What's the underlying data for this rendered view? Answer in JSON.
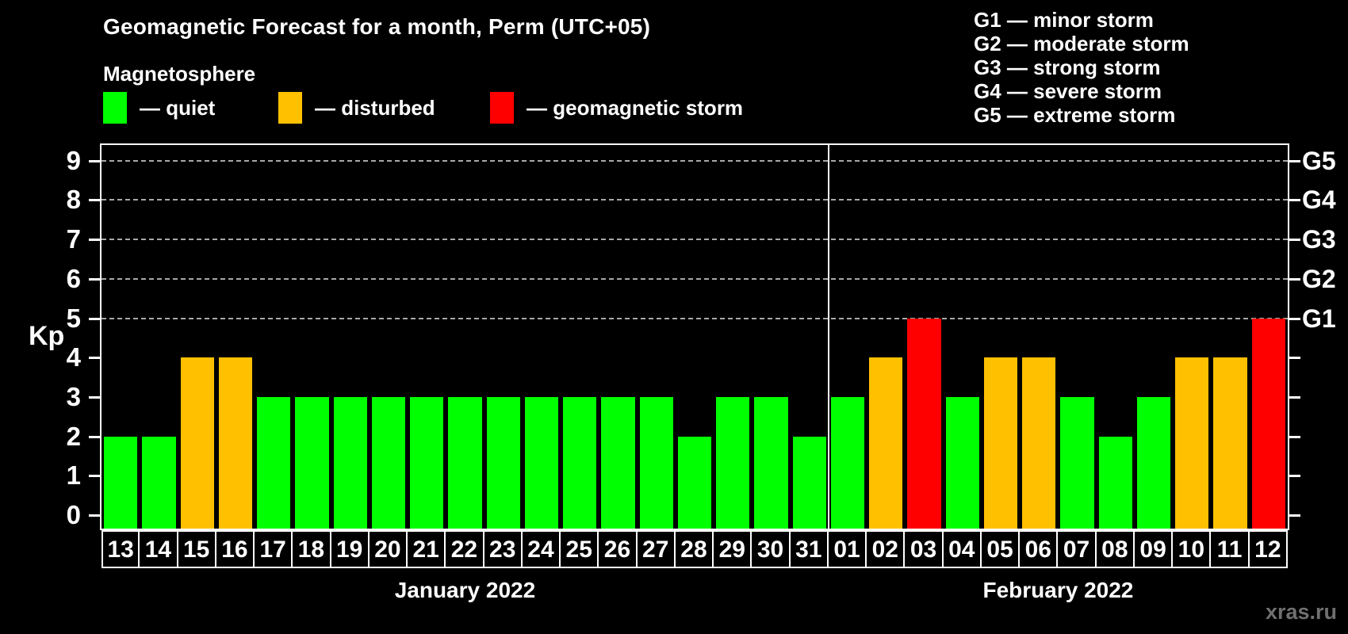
{
  "title": "Geomagnetic Forecast for a month, Perm (UTC+05)",
  "subtitle": "Magnetosphere",
  "axis": {
    "y_label": "Kp"
  },
  "status_legend": [
    {
      "status": "quiet",
      "label": "— quiet",
      "color": "#00ff00"
    },
    {
      "status": "disturbed",
      "label": "— disturbed",
      "color": "#ffc000"
    },
    {
      "status": "storm",
      "label": "— geomagnetic storm",
      "color": "#ff0000"
    }
  ],
  "g_scale_legend": [
    "G1 — minor storm",
    "G2 — moderate storm",
    "G3 — strong storm",
    "G4 — severe storm",
    "G5 — extreme storm"
  ],
  "watermark": "xras.ru",
  "chart_data": {
    "type": "bar",
    "ylabel": "Kp",
    "ylim": [
      0,
      9
    ],
    "yticks": [
      0,
      1,
      2,
      3,
      4,
      5,
      6,
      7,
      8,
      9
    ],
    "gridlines_at": [
      5,
      6,
      7,
      8,
      9
    ],
    "grid": "dashed",
    "right_axis": [
      {
        "kp": 5,
        "label": "G1"
      },
      {
        "kp": 6,
        "label": "G2"
      },
      {
        "kp": 7,
        "label": "G3"
      },
      {
        "kp": 8,
        "label": "G4"
      },
      {
        "kp": 9,
        "label": "G5"
      }
    ],
    "months": [
      {
        "label": "January 2022",
        "days": [
          {
            "date": "13",
            "kp": 2,
            "status": "quiet"
          },
          {
            "date": "14",
            "kp": 2,
            "status": "quiet"
          },
          {
            "date": "15",
            "kp": 4,
            "status": "disturbed"
          },
          {
            "date": "16",
            "kp": 4,
            "status": "disturbed"
          },
          {
            "date": "17",
            "kp": 3,
            "status": "quiet"
          },
          {
            "date": "18",
            "kp": 3,
            "status": "quiet"
          },
          {
            "date": "19",
            "kp": 3,
            "status": "quiet"
          },
          {
            "date": "20",
            "kp": 3,
            "status": "quiet"
          },
          {
            "date": "21",
            "kp": 3,
            "status": "quiet"
          },
          {
            "date": "22",
            "kp": 3,
            "status": "quiet"
          },
          {
            "date": "23",
            "kp": 3,
            "status": "quiet"
          },
          {
            "date": "24",
            "kp": 3,
            "status": "quiet"
          },
          {
            "date": "25",
            "kp": 3,
            "status": "quiet"
          },
          {
            "date": "26",
            "kp": 3,
            "status": "quiet"
          },
          {
            "date": "27",
            "kp": 3,
            "status": "quiet"
          },
          {
            "date": "28",
            "kp": 2,
            "status": "quiet"
          },
          {
            "date": "29",
            "kp": 3,
            "status": "quiet"
          },
          {
            "date": "30",
            "kp": 3,
            "status": "quiet"
          },
          {
            "date": "31",
            "kp": 2,
            "status": "quiet"
          }
        ]
      },
      {
        "label": "February 2022",
        "days": [
          {
            "date": "01",
            "kp": 3,
            "status": "quiet"
          },
          {
            "date": "02",
            "kp": 4,
            "status": "disturbed"
          },
          {
            "date": "03",
            "kp": 5,
            "status": "storm"
          },
          {
            "date": "04",
            "kp": 3,
            "status": "quiet"
          },
          {
            "date": "05",
            "kp": 4,
            "status": "disturbed"
          },
          {
            "date": "06",
            "kp": 4,
            "status": "disturbed"
          },
          {
            "date": "07",
            "kp": 3,
            "status": "quiet"
          },
          {
            "date": "08",
            "kp": 2,
            "status": "quiet"
          },
          {
            "date": "09",
            "kp": 3,
            "status": "quiet"
          },
          {
            "date": "10",
            "kp": 4,
            "status": "disturbed"
          },
          {
            "date": "11",
            "kp": 4,
            "status": "disturbed"
          },
          {
            "date": "12",
            "kp": 5,
            "status": "storm"
          }
        ]
      }
    ]
  }
}
